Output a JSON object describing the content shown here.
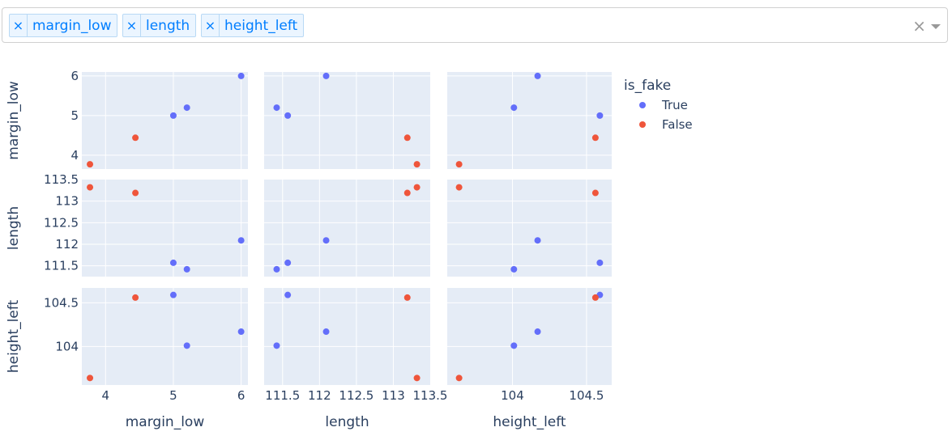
{
  "selector": {
    "tags": [
      {
        "label": "margin_low"
      },
      {
        "label": "length"
      },
      {
        "label": "height_left"
      }
    ],
    "remove_symbol": "×",
    "clear_symbol": "×"
  },
  "chart_data": {
    "type": "scatter",
    "dimensions": [
      "margin_low",
      "length",
      "height_left"
    ],
    "legend_title": "is_fake",
    "legend_position": "top-right",
    "series": [
      {
        "name": "True",
        "color": "#636efa",
        "points": [
          {
            "margin_low": 5.2,
            "length": 111.42,
            "height_left": 104.01
          },
          {
            "margin_low": 5.0,
            "length": 111.57,
            "height_left": 104.59
          },
          {
            "margin_low": 6.0,
            "length": 112.09,
            "height_left": 104.17
          }
        ]
      },
      {
        "name": "False",
        "color": "#ef553b",
        "points": [
          {
            "margin_low": 3.77,
            "length": 113.32,
            "height_left": 103.64
          },
          {
            "margin_low": 4.44,
            "length": 113.19,
            "height_left": 104.56
          }
        ]
      }
    ],
    "axes": {
      "margin_low": {
        "range": [
          3.65,
          6.1
        ],
        "ticks": [
          4,
          5,
          6
        ]
      },
      "length": {
        "range": [
          111.25,
          113.5
        ],
        "ticks": [
          111.5,
          112,
          112.5,
          113,
          113.5
        ]
      },
      "height_left": {
        "range": [
          103.56,
          104.67
        ],
        "ticks": [
          104,
          104.5
        ]
      }
    },
    "row_ticks": {
      "margin_low": [
        4,
        5,
        6
      ],
      "length": [
        111.5,
        112,
        112.5,
        113,
        113.5
      ],
      "height_left": [
        104,
        104.5
      ]
    },
    "col_ticks": {
      "margin_low": [
        4,
        5,
        6
      ],
      "length": [
        111.5,
        112,
        112.5,
        113,
        113.5
      ],
      "height_left": [
        104,
        104.5
      ]
    },
    "grid": true
  }
}
